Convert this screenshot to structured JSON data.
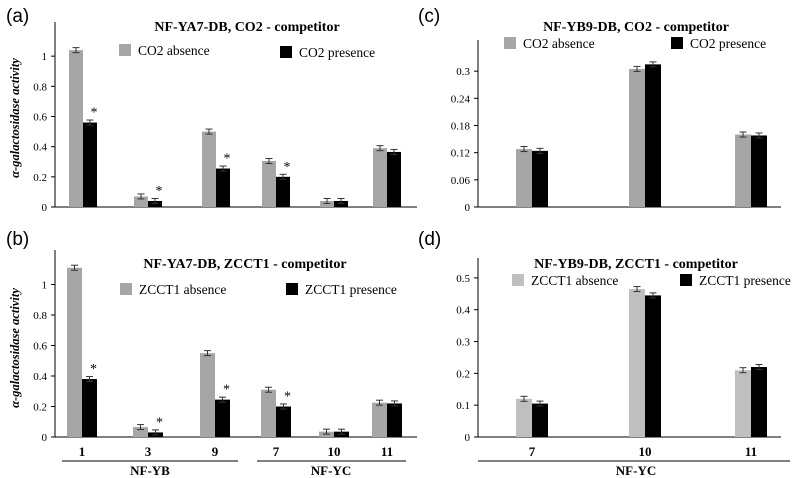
{
  "chart_data": [
    {
      "panel": "(a)",
      "type": "bar",
      "title": "NF-YA7-DB, CO2 - competitor",
      "ylabel": "α-galactosidase activity",
      "xlabel": "",
      "ylim": [
        0,
        1.2
      ],
      "yticks": [
        "0",
        "0.2",
        "0.4",
        "0.6",
        "0.8",
        "1"
      ],
      "categories": [
        "1",
        "3",
        "9",
        "7",
        "10",
        "11"
      ],
      "series": [
        {
          "name": "CO2 absence",
          "color": "#a6a6a6",
          "values": [
            1.04,
            0.07,
            0.5,
            0.305,
            0.04,
            0.39
          ]
        },
        {
          "name": "CO2 presence",
          "color": "#000000",
          "values": [
            0.56,
            0.04,
            0.255,
            0.2,
            0.04,
            0.365
          ]
        }
      ],
      "significant": [
        "*",
        "*",
        "*",
        "*",
        "",
        ""
      ]
    },
    {
      "panel": "(b)",
      "type": "bar",
      "title": "NF-YA7-DB, ZCCT1 - competitor",
      "ylabel": "α-galactosidase activity",
      "xlabel": "",
      "ylim": [
        0,
        1.2
      ],
      "yticks": [
        "0",
        "0.2",
        "0.4",
        "0.6",
        "0.8",
        "1"
      ],
      "categories": [
        "1",
        "3",
        "9",
        "7",
        "10",
        "11"
      ],
      "group_labels": [
        "NF-YB",
        "NF-YC"
      ],
      "series": [
        {
          "name": "ZCCT1 absence",
          "color": "#a6a6a6",
          "values": [
            1.11,
            0.065,
            0.55,
            0.31,
            0.035,
            0.225
          ]
        },
        {
          "name": "ZCCT1 presence",
          "color": "#000000",
          "values": [
            0.38,
            0.03,
            0.245,
            0.2,
            0.035,
            0.22
          ]
        }
      ],
      "significant": [
        "*",
        "*",
        "*",
        "*",
        "",
        ""
      ]
    },
    {
      "panel": "(c)",
      "type": "bar",
      "title": "NF-YB9-DB, CO2 - competitor",
      "ylabel": "",
      "xlabel": "",
      "ylim": [
        0,
        0.36
      ],
      "yticks": [
        "0",
        "0.06",
        "0.12",
        "0.18",
        "0.24",
        "0.3"
      ],
      "categories": [
        "7",
        "10",
        "11"
      ],
      "series": [
        {
          "name": "CO2 absence",
          "color": "#a6a6a6",
          "values": [
            0.128,
            0.305,
            0.16
          ]
        },
        {
          "name": "CO2 presence",
          "color": "#000000",
          "values": [
            0.124,
            0.315,
            0.158
          ]
        }
      ]
    },
    {
      "panel": "(d)",
      "type": "bar",
      "title": "NF-YB9-DB, ZCCT1 - competitor",
      "ylabel": "",
      "xlabel": "",
      "ylim": [
        0,
        0.55
      ],
      "yticks": [
        "0",
        "0.1",
        "0.2",
        "0.3",
        "0.4",
        "0.5"
      ],
      "categories": [
        "7",
        "10",
        "11"
      ],
      "group_labels": [
        "NF-YC"
      ],
      "series": [
        {
          "name": "ZCCT1 absence",
          "color": "#bfbfbf",
          "values": [
            0.12,
            0.465,
            0.21
          ]
        },
        {
          "name": "ZCCT1 presence",
          "color": "#000000",
          "values": [
            0.105,
            0.445,
            0.22
          ]
        }
      ]
    }
  ]
}
